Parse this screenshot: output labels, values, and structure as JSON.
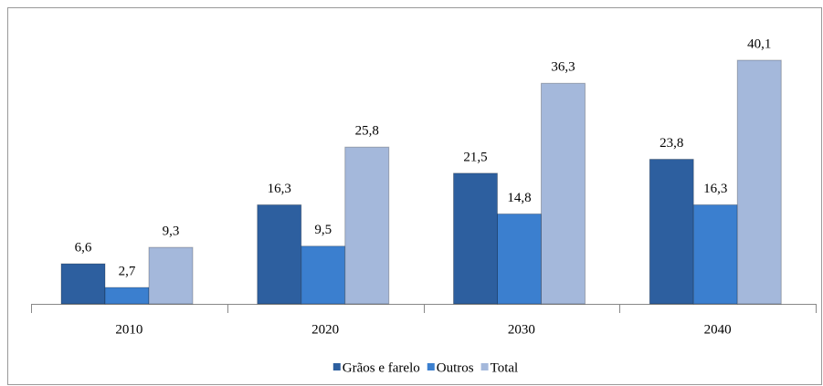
{
  "chart_data": {
    "type": "bar",
    "categories": [
      "2010",
      "2020",
      "2030",
      "2040"
    ],
    "series": [
      {
        "name": "Grãos e farelo",
        "color": "#2d5f9f",
        "values": [
          6.6,
          16.3,
          21.5,
          23.8
        ],
        "value_labels": [
          "6,6",
          "16,3",
          "21,5",
          "23,8"
        ]
      },
      {
        "name": "Outros",
        "color": "#3b7fcf",
        "values": [
          2.7,
          9.5,
          14.8,
          16.3
        ],
        "value_labels": [
          "2,7",
          "9,5",
          "14,8",
          "16,3"
        ]
      },
      {
        "name": "Total",
        "color": "#a4b8db",
        "values": [
          9.3,
          25.8,
          36.3,
          40.1
        ],
        "value_labels": [
          "9,3",
          "25,8",
          "36,3",
          "40,1"
        ]
      }
    ],
    "legend": "bottom"
  }
}
